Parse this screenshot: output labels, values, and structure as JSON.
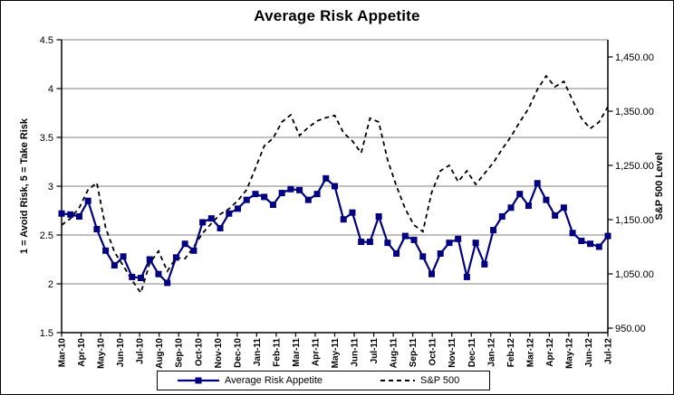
{
  "chart_data": {
    "type": "line",
    "title": "Average Risk Appetite",
    "x_labels": [
      "Mar-10",
      "Apr-10",
      "May-10",
      "Jun-10",
      "Jul-10",
      "Aug-10",
      "Sep-10",
      "Oct-10",
      "Nov-10",
      "Dec-10",
      "Jan-11",
      "Feb-11",
      "Mar-11",
      "Apr-11",
      "May-11",
      "Jun-11",
      "Jul-11",
      "Aug-11",
      "Sep-11",
      "Oct-11",
      "Nov-11",
      "Dec-11",
      "Jan-12",
      "Feb-12",
      "Mar-12",
      "Apr-12",
      "May-12",
      "Jun-12",
      "Jul-12"
    ],
    "left_axis": {
      "title": "1 = Avoid Risk, 5 = Take Risk",
      "min": 1.5,
      "max": 4.5,
      "tick_labels": [
        "4.5",
        "4",
        "3.5",
        "3",
        "2.5",
        "2",
        "1.5"
      ],
      "tick_values": [
        4.5,
        4,
        3.5,
        3,
        2.5,
        2,
        1.5
      ]
    },
    "right_axis": {
      "title": "S&P 500 Level",
      "tick_labels": [
        "1,450.00",
        "1,350.00",
        "1,250.00",
        "1,150.00",
        "1,050.00",
        "950.00"
      ],
      "tick_values": [
        1450,
        1350,
        1250,
        1150,
        1050,
        950
      ]
    },
    "gridlines": "horizontal",
    "legend_position": "bottom",
    "colors": {
      "risk_line": "#000080",
      "sp_line": "#000000",
      "gridline": "#808080",
      "axis": "#000000"
    },
    "series": [
      {
        "name": "Average Risk Appetite",
        "axis": "left",
        "color": "#000080",
        "line_style": "solid",
        "marker": "square",
        "values": [
          2.72,
          2.71,
          2.69,
          2.85,
          2.56,
          2.34,
          2.19,
          2.28,
          2.07,
          2.06,
          2.25,
          2.1,
          2.01,
          2.27,
          2.41,
          2.34,
          2.63,
          2.67,
          2.57,
          2.72,
          2.77,
          2.86,
          2.92,
          2.89,
          2.81,
          2.93,
          2.97,
          2.96,
          2.86,
          2.92,
          3.08,
          3.0,
          2.66,
          2.73,
          2.43,
          2.43,
          2.69,
          2.42,
          2.31,
          2.49,
          2.45,
          2.28,
          2.1,
          2.31,
          2.42,
          2.46,
          2.07,
          2.42,
          2.2,
          2.55,
          2.69,
          2.78,
          2.92,
          2.8,
          3.03,
          2.86,
          2.7,
          2.78,
          2.52,
          2.44,
          2.41,
          2.38,
          2.49
        ]
      },
      {
        "name": "S&P 500",
        "axis": "right",
        "color": "#000000",
        "line_style": "dashed",
        "marker": "none",
        "values": [
          1140,
          1152,
          1172,
          1205,
          1218,
          1135,
          1090,
          1065,
          1038,
          1015,
          1070,
          1092,
          1055,
          1080,
          1078,
          1100,
          1125,
          1143,
          1160,
          1170,
          1185,
          1205,
          1245,
          1286,
          1300,
          1330,
          1343,
          1305,
          1320,
          1332,
          1338,
          1342,
          1310,
          1295,
          1273,
          1337,
          1330,
          1260,
          1212,
          1170,
          1140,
          1128,
          1200,
          1240,
          1250,
          1220,
          1240,
          1215,
          1235,
          1255,
          1280,
          1303,
          1330,
          1355,
          1390,
          1415,
          1395,
          1405,
          1370,
          1337,
          1318,
          1330,
          1358
        ]
      }
    ]
  }
}
